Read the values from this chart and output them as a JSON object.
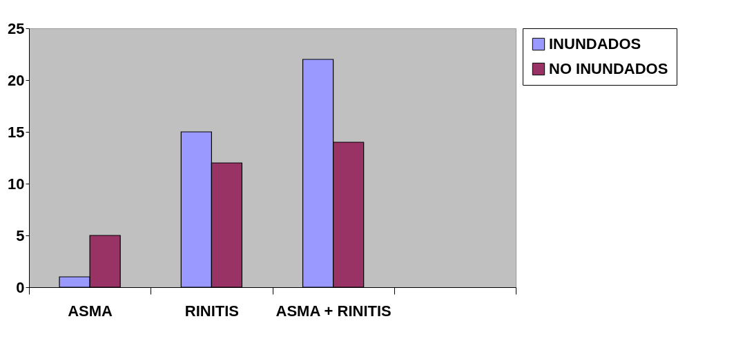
{
  "chart_data": {
    "type": "bar",
    "categories": [
      "ASMA",
      "RINITIS",
      "ASMA + RINITIS",
      null
    ],
    "series": [
      {
        "name": "INUNDADOS",
        "color": "#9999ff",
        "values": [
          1,
          15,
          22,
          null
        ]
      },
      {
        "name": "NO INUNDADOS",
        "color": "#993366",
        "values": [
          5,
          12,
          14,
          null
        ]
      }
    ],
    "ylim": [
      0,
      25
    ],
    "yticks": [
      0,
      5,
      10,
      15,
      20,
      25
    ],
    "grid": false,
    "legend": "right"
  }
}
